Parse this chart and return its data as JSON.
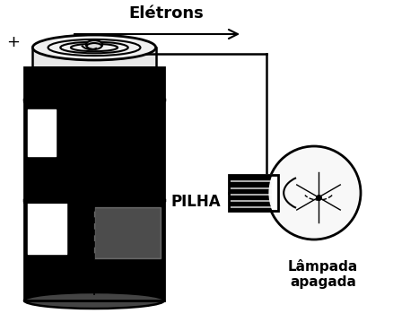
{
  "electrons_label": "Elétrons",
  "pilha_label": "PILHA",
  "lampada_label": "Lâmpada\napagada",
  "plus_label": "+",
  "bg_color": "#ffffff",
  "black": "#000000",
  "dark_gray": "#1a1a1a",
  "mid_gray": "#888888",
  "light_gray": "#cccccc",
  "white": "#ffffff"
}
